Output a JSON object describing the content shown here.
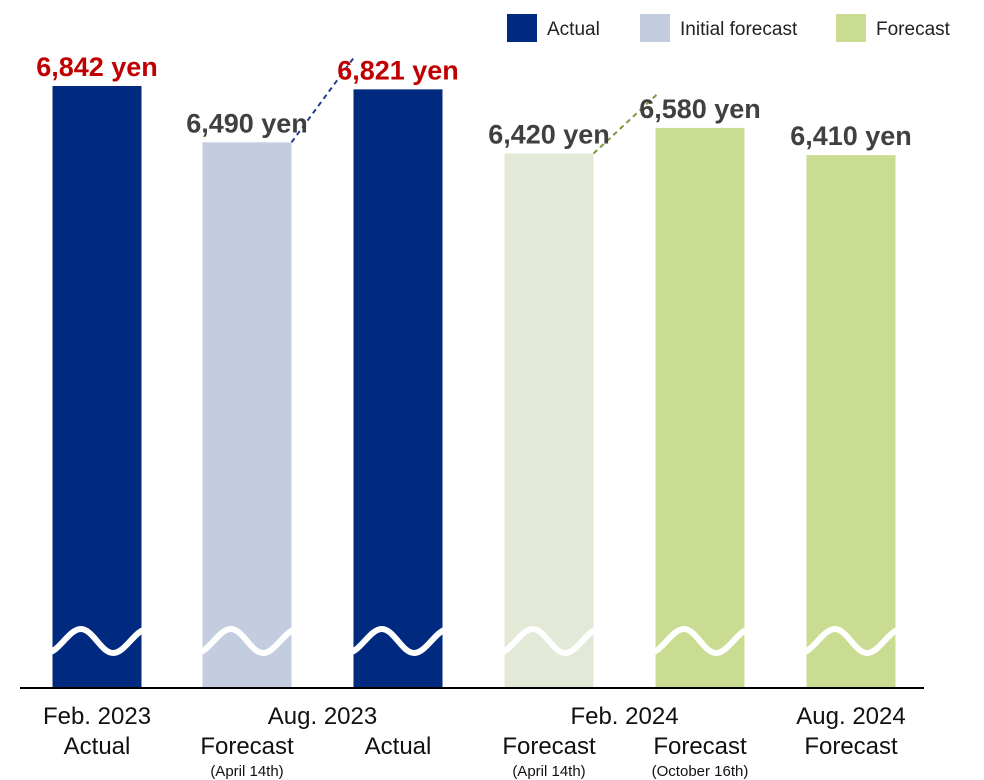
{
  "chart_data": {
    "type": "bar",
    "value_unit": "yen",
    "colors": {
      "actual": "#002a7f",
      "initial_forecast": "#c4cde0",
      "forecast": "#c9dc92",
      "forecast_initial": "#e2e9d6",
      "highlight_text": "#c00000",
      "default_text": "#404040",
      "connector_blue": "#1f3b8f",
      "connector_green": "#7a9a3a"
    },
    "legend": [
      {
        "label": "Actual",
        "color": "#002a7f"
      },
      {
        "label": "Initial forecast",
        "color": "#c4cde0"
      },
      {
        "label": "Forecast",
        "color": "#c9dc92"
      }
    ],
    "bars": [
      {
        "value": 6842,
        "label": "6,842 yen",
        "series": "Actual",
        "color": "#002a7f",
        "label_color": "#c00000",
        "line1": "Actual",
        "line2": ""
      },
      {
        "value": 6490,
        "label": "6,490 yen",
        "series": "Initial forecast",
        "color": "#c4cde0",
        "label_color": "#404040",
        "line1": "Forecast",
        "line2": "(April 14th)"
      },
      {
        "value": 6821,
        "label": "6,821 yen",
        "series": "Actual",
        "color": "#002a7f",
        "label_color": "#c00000",
        "line1": "Actual",
        "line2": ""
      },
      {
        "value": 6420,
        "label": "6,420 yen",
        "series": "Initial forecast",
        "color": "#e2e9d6",
        "label_color": "#404040",
        "line1": "Forecast",
        "line2": "(April 14th)"
      },
      {
        "value": 6580,
        "label": "6,580 yen",
        "series": "Forecast",
        "color": "#c9dc92",
        "label_color": "#404040",
        "line1": "Forecast",
        "line2": "(October 16th)"
      },
      {
        "value": 6410,
        "label": "6,410 yen",
        "series": "Forecast",
        "color": "#c9dc92",
        "label_color": "#404040",
        "line1": "Forecast",
        "line2": ""
      }
    ],
    "groups": [
      {
        "label": "Feb. 2023",
        "bars": [
          0
        ]
      },
      {
        "label": "Aug. 2023",
        "bars": [
          1,
          2
        ]
      },
      {
        "label": "Feb. 2024",
        "bars": [
          3,
          4
        ]
      },
      {
        "label": "Aug. 2024",
        "bars": [
          5
        ]
      }
    ],
    "connectors": [
      {
        "from": 1,
        "to": 2,
        "color": "#1f3b8f"
      },
      {
        "from": 3,
        "to": 4,
        "color": "#7a9a3a"
      }
    ],
    "axis_break": true
  }
}
